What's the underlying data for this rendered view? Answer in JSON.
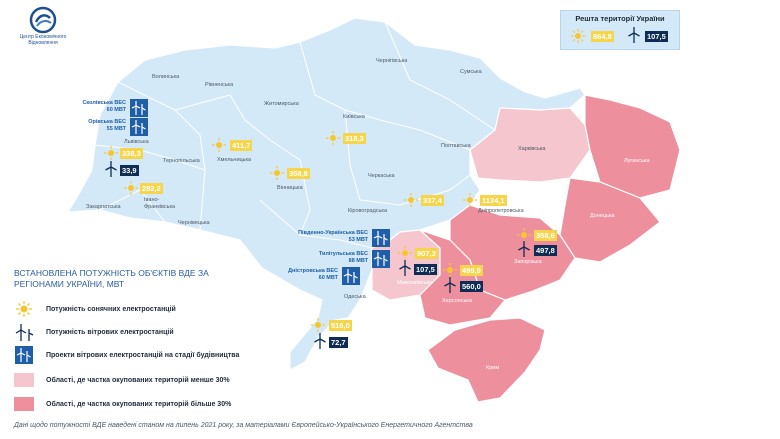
{
  "logo": {
    "name": "Центр Економічного Відновлення"
  },
  "rest_of_ukraine": {
    "title": "Решта території України",
    "solar": "864,8",
    "wind": "107,5"
  },
  "colors": {
    "unoccupied": "#d4e9f7",
    "occupied_under_30": "#f5c6cd",
    "occupied_over_30": "#ee8f9d",
    "solar": "#f7d54a",
    "wind": "#0f2c55",
    "project": "#1f5fa8"
  },
  "regions": [
    {
      "name": "Волинська"
    },
    {
      "name": "Рівненська"
    },
    {
      "name": "Житомирська"
    },
    {
      "name": "Чернігівська"
    },
    {
      "name": "Сумська"
    },
    {
      "name": "Київська"
    },
    {
      "name": "Львівська"
    },
    {
      "name": "Тернопільська"
    },
    {
      "name": "Хмельницька"
    },
    {
      "name": "Вінницька"
    },
    {
      "name": "Полтавська"
    },
    {
      "name": "Черкаська"
    },
    {
      "name": "Харківська"
    },
    {
      "name": "Луганська"
    },
    {
      "name": "Закарпатська"
    },
    {
      "name": "Івано-Франківська"
    },
    {
      "name": "Чернівецька"
    },
    {
      "name": "Кіровоградська"
    },
    {
      "name": "Дніпропетровська"
    },
    {
      "name": "Донецька"
    },
    {
      "name": "Запорізька"
    },
    {
      "name": "Миколаївська"
    },
    {
      "name": "Одеська"
    },
    {
      "name": "Херсонська"
    },
    {
      "name": "Крим"
    }
  ],
  "solar_values": [
    {
      "value": "338,3"
    },
    {
      "value": "282,2"
    },
    {
      "value": "411,7"
    },
    {
      "value": "358,8"
    },
    {
      "value": "318,3"
    },
    {
      "value": "337,4"
    },
    {
      "value": "1134,1"
    },
    {
      "value": "358,6"
    },
    {
      "value": "907,3"
    },
    {
      "value": "499,9"
    },
    {
      "value": "516,0"
    }
  ],
  "wind_values": [
    {
      "value": "33,9"
    },
    {
      "value": "497,8"
    },
    {
      "value": "107,5"
    },
    {
      "value": "560,0"
    },
    {
      "value": "72,7"
    }
  ],
  "wind_projects": [
    {
      "name": "Сколівська ВЕС",
      "capacity": "60 МВТ"
    },
    {
      "name": "Орівська ВЕС",
      "capacity": "55 МВТ"
    },
    {
      "name": "Південно-Українська ВЕС",
      "capacity": "53 МВТ"
    },
    {
      "name": "Тилігульська ВЕС",
      "capacity": "88 МВТ"
    },
    {
      "name": "Дністровська ВЕС",
      "capacity": "60 МВТ"
    }
  ],
  "legend": {
    "title": "ВСТАНОВЛЕНА ПОТУЖНІСТЬ ОБ'ЄКТІВ ВДЕ ЗА РЕГІОНАМИ УКРАЇНИ, МВТ",
    "items": [
      {
        "label": "Потужність сонячних електростанцій"
      },
      {
        "label": "Потужність вітрових електростанцій"
      },
      {
        "label": "Проекти вітрових електростанцій на стадії будівництва"
      },
      {
        "label": "Області, де частка окупованих територій менше 30%"
      },
      {
        "label": "Області, де частка окупованих територій більше 30%"
      }
    ]
  },
  "footnote": "Дані щодо потужності ВДЕ наведені станом на липень 2021 року, за матеріалами Європейсько-Українського Енергетичного Агентства"
}
